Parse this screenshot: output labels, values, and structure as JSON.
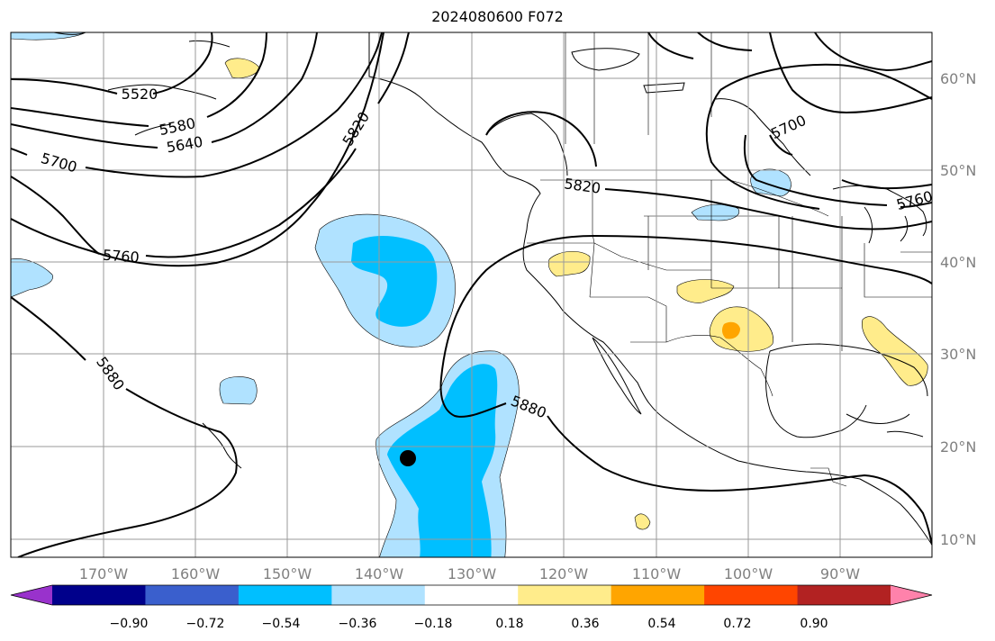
{
  "title": "2024080600 F072",
  "map": {
    "lon_labels": [
      "170°W",
      "160°W",
      "150°W",
      "140°W",
      "130°W",
      "120°W",
      "110°W",
      "100°W",
      "90°W"
    ],
    "lat_labels": [
      "60°N",
      "50°N",
      "40°N",
      "30°N",
      "20°N",
      "10°N"
    ],
    "contour_labels": [
      "5520",
      "5580",
      "5640",
      "5700",
      "5760",
      "5820",
      "5880",
      "5820",
      "5700",
      "5760",
      "5880"
    ]
  },
  "colorbar": {
    "ticks": [
      "−0.90",
      "−0.72",
      "−0.54",
      "−0.36",
      "−0.18",
      "0.18",
      "0.36",
      "0.54",
      "0.72",
      "0.90"
    ],
    "colors": [
      "#9932cc",
      "#00008b",
      "#3a5fcd",
      "#00bfff",
      "#b0e2ff",
      "#ffffff",
      "#ffec8b",
      "#ffa500",
      "#ff4500",
      "#b22222",
      "#ff82ab"
    ]
  }
}
